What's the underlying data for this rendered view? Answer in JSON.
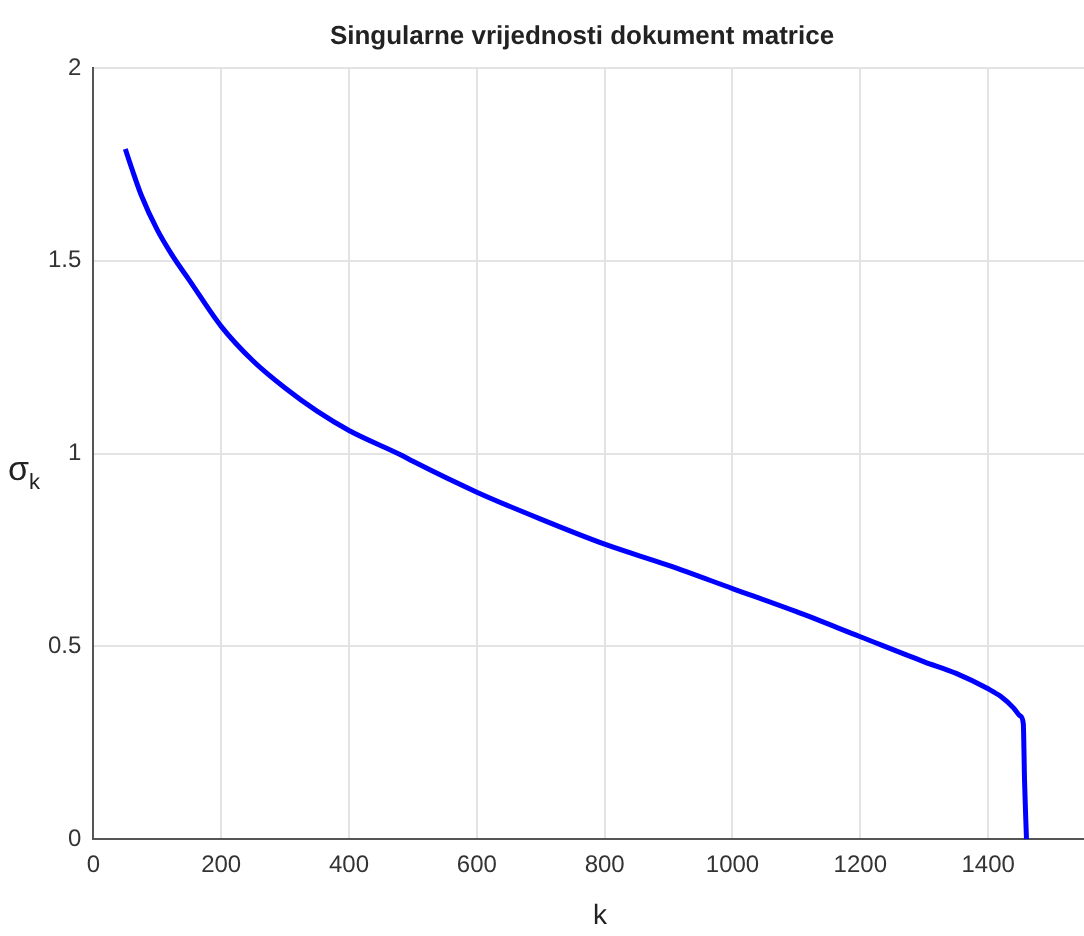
{
  "chart_data": {
    "type": "line",
    "title": "Singularne vrijednosti dokument matrice",
    "xlabel": "k",
    "ylabel": "σ$_{k}$",
    "series": [
      {
        "color": "#0000ff",
        "x": [
          50,
          60,
          75,
          100,
          125,
          150,
          200,
          250,
          300,
          350,
          400,
          483,
          500,
          600,
          700,
          800,
          900,
          1000,
          1100,
          1200,
          1300,
          1350,
          1400,
          1420,
          1440,
          1450,
          1455,
          1457,
          1460
        ],
        "values": [
          1.79,
          1.74,
          1.67,
          1.58,
          1.51,
          1.45,
          1.33,
          1.24,
          1.17,
          1.11,
          1.06,
          0.995,
          0.98,
          0.9,
          0.83,
          0.765,
          0.71,
          0.65,
          0.59,
          0.525,
          0.46,
          0.43,
          0.39,
          0.37,
          0.34,
          0.32,
          0.3,
          0.15,
          0.0
        ]
      }
    ],
    "xlim": [
      0,
      1550
    ],
    "xticks": [
      0,
      200,
      400,
      600,
      800,
      1000,
      1200,
      1400
    ],
    "ylim": [
      0,
      2
    ],
    "yticks": [
      0,
      0.5,
      1,
      1.5,
      2
    ],
    "grid": true,
    "marker": "none",
    "line_style": "solid",
    "legend": false
  }
}
